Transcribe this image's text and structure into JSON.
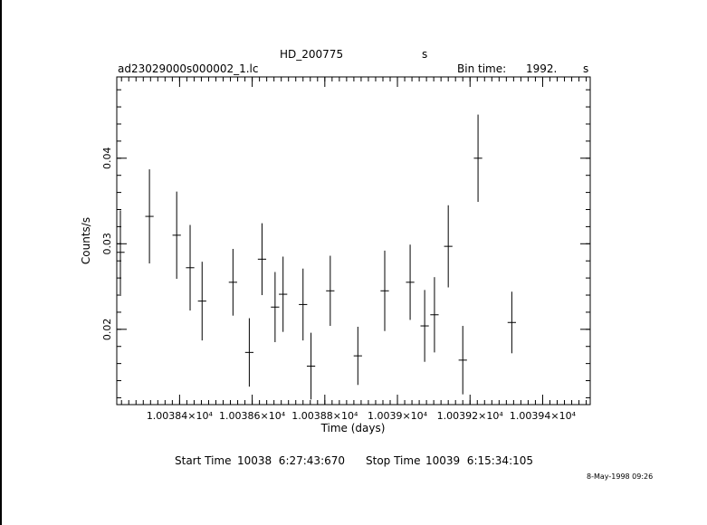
{
  "header": {
    "object": "HD_200775",
    "object_unit": "s",
    "filename": "ad23029000s000002_1.lc",
    "bin_time_label": "Bin time:",
    "bin_time_value": "1992.",
    "bin_time_unit": "s"
  },
  "footer": {
    "start_label": "Start Time",
    "start_value": "10038  6:27:43:670",
    "stop_label": "Stop Time",
    "stop_value": "10039  6:15:34:105",
    "timestamp": "8-May-1998 09:26"
  },
  "chart_data": {
    "type": "scatter",
    "xlabel": "Time (days)",
    "ylabel": "Counts/s",
    "xlim": [
      10038.227,
      10039.531
    ],
    "ylim": [
      0.0112,
      0.0495
    ],
    "x_ticks": [
      {
        "value": 10038.4,
        "label": "1.00384×10⁴"
      },
      {
        "value": 10038.6,
        "label": "1.00386×10⁴"
      },
      {
        "value": 10038.8,
        "label": "1.00388×10⁴"
      },
      {
        "value": 10039.0,
        "label": "1.0039×10⁴"
      },
      {
        "value": 10039.2,
        "label": "1.00392×10⁴"
      },
      {
        "value": 10039.4,
        "label": "1.00394×10⁴"
      }
    ],
    "y_ticks": [
      {
        "value": 0.02,
        "label": "0.02"
      },
      {
        "value": 0.03,
        "label": "0.03"
      },
      {
        "value": 0.04,
        "label": "0.04"
      }
    ],
    "x_minor_step": 0.02,
    "y_minor_step": 0.002,
    "half_bin_days": 0.0115,
    "points": [
      {
        "x": 10038.237,
        "y": 0.029,
        "err": 0.0049
      },
      {
        "x": 10038.317,
        "y": 0.0332,
        "err": 0.0055
      },
      {
        "x": 10038.392,
        "y": 0.031,
        "err": 0.0051
      },
      {
        "x": 10038.429,
        "y": 0.0272,
        "err": 0.005
      },
      {
        "x": 10038.462,
        "y": 0.0233,
        "err": 0.0046
      },
      {
        "x": 10038.547,
        "y": 0.0255,
        "err": 0.0039
      },
      {
        "x": 10038.592,
        "y": 0.0173,
        "err": 0.004
      },
      {
        "x": 10038.627,
        "y": 0.0282,
        "err": 0.0042
      },
      {
        "x": 10038.663,
        "y": 0.0226,
        "err": 0.0041
      },
      {
        "x": 10038.685,
        "y": 0.0241,
        "err": 0.0044
      },
      {
        "x": 10038.74,
        "y": 0.0229,
        "err": 0.0042
      },
      {
        "x": 10038.762,
        "y": 0.0157,
        "err": 0.0039
      },
      {
        "x": 10038.815,
        "y": 0.0245,
        "err": 0.0041
      },
      {
        "x": 10038.891,
        "y": 0.0169,
        "err": 0.0034
      },
      {
        "x": 10038.965,
        "y": 0.0245,
        "err": 0.0047
      },
      {
        "x": 10039.035,
        "y": 0.0255,
        "err": 0.0044
      },
      {
        "x": 10039.075,
        "y": 0.0204,
        "err": 0.0042
      },
      {
        "x": 10039.102,
        "y": 0.0217,
        "err": 0.0044
      },
      {
        "x": 10039.14,
        "y": 0.0297,
        "err": 0.0048
      },
      {
        "x": 10039.18,
        "y": 0.0164,
        "err": 0.004
      },
      {
        "x": 10039.222,
        "y": 0.04,
        "err": 0.0051
      },
      {
        "x": 10039.315,
        "y": 0.0208,
        "err": 0.0036
      }
    ]
  }
}
